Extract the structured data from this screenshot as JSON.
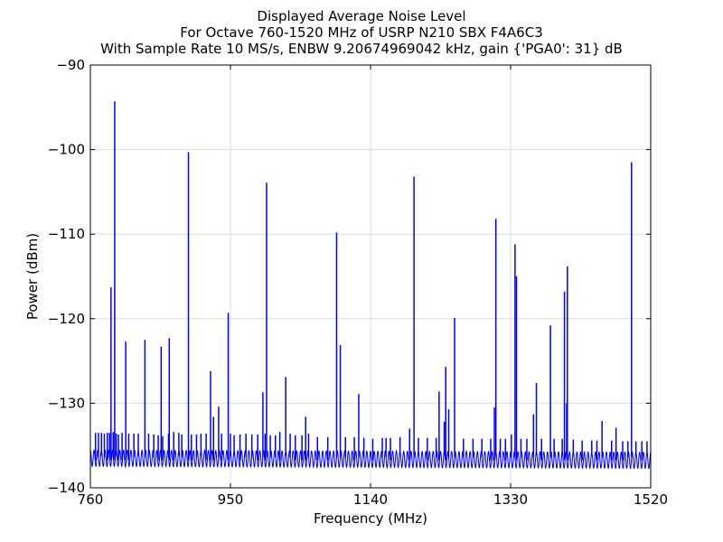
{
  "chart_data": {
    "type": "line",
    "title_lines": [
      "Displayed Average Noise Level",
      "For Octave 760-1520 MHz of USRP N210 SBX F4A6C3",
      "With Sample Rate 10 MS/s, ENBW 9.20674969042 kHz, gain {'PGA0': 31} dB"
    ],
    "xlabel": "Frequency (MHz)",
    "ylabel": "Power (dBm)",
    "xlim": [
      760,
      1520
    ],
    "ylim": [
      -140,
      -90
    ],
    "x_ticks": [
      760,
      950,
      1140,
      1330,
      1520
    ],
    "x_tick_labels": [
      "760",
      "950",
      "1140",
      "1330",
      "1520"
    ],
    "y_ticks": [
      -90,
      -100,
      -110,
      -120,
      -130,
      -140
    ],
    "y_tick_labels": [
      "−90",
      "−100",
      "−110",
      "−120",
      "−130",
      "−140"
    ],
    "grid": true,
    "series": [
      {
        "color": "#0000ff",
        "noise_floor_dbm": -136.5,
        "ripple_period_mhz": 5,
        "peaks": [
          {
            "x": 767,
            "y": -133.5
          },
          {
            "x": 771,
            "y": -133.5
          },
          {
            "x": 775,
            "y": -133.5
          },
          {
            "x": 779,
            "y": -133.6
          },
          {
            "x": 783,
            "y": -133.5
          },
          {
            "x": 786,
            "y": -133.5
          },
          {
            "x": 788,
            "y": -116.3
          },
          {
            "x": 791,
            "y": -133.4
          },
          {
            "x": 793,
            "y": -94.3
          },
          {
            "x": 795,
            "y": -133.6
          },
          {
            "x": 798,
            "y": -133.7
          },
          {
            "x": 803,
            "y": -133.5
          },
          {
            "x": 808,
            "y": -122.7
          },
          {
            "x": 812,
            "y": -133.6
          },
          {
            "x": 819,
            "y": -133.6
          },
          {
            "x": 825,
            "y": -133.6
          },
          {
            "x": 834,
            "y": -122.5
          },
          {
            "x": 839,
            "y": -133.6
          },
          {
            "x": 846,
            "y": -133.7
          },
          {
            "x": 852,
            "y": -133.8
          },
          {
            "x": 856,
            "y": -123.3
          },
          {
            "x": 858,
            "y": -133.9
          },
          {
            "x": 866,
            "y": -133.6
          },
          {
            "x": 867,
            "y": -122.3
          },
          {
            "x": 873,
            "y": -133.4
          },
          {
            "x": 880,
            "y": -133.5
          },
          {
            "x": 884,
            "y": -133.7
          },
          {
            "x": 893,
            "y": -100.3
          },
          {
            "x": 897,
            "y": -133.7
          },
          {
            "x": 904,
            "y": -133.7
          },
          {
            "x": 910,
            "y": -133.6
          },
          {
            "x": 917,
            "y": -133.6
          },
          {
            "x": 923,
            "y": -126.2
          },
          {
            "x": 927,
            "y": -131.6
          },
          {
            "x": 934,
            "y": -130.4
          },
          {
            "x": 938,
            "y": -133.6
          },
          {
            "x": 947,
            "y": -119.3
          },
          {
            "x": 950,
            "y": -133.6
          },
          {
            "x": 955,
            "y": -133.8
          },
          {
            "x": 963,
            "y": -133.7
          },
          {
            "x": 971,
            "y": -133.6
          },
          {
            "x": 979,
            "y": -133.7
          },
          {
            "x": 987,
            "y": -133.7
          },
          {
            "x": 994,
            "y": -128.7
          },
          {
            "x": 997,
            "y": -133.6
          },
          {
            "x": 999,
            "y": -103.9
          },
          {
            "x": 1004,
            "y": -133.8
          },
          {
            "x": 1011,
            "y": -133.8
          },
          {
            "x": 1017,
            "y": -133.4
          },
          {
            "x": 1025,
            "y": -126.9
          },
          {
            "x": 1031,
            "y": -133.6
          },
          {
            "x": 1038,
            "y": -133.8
          },
          {
            "x": 1047,
            "y": -133.8
          },
          {
            "x": 1052,
            "y": -131.6
          },
          {
            "x": 1056,
            "y": -133.6
          },
          {
            "x": 1068,
            "y": -134.0
          },
          {
            "x": 1082,
            "y": -134.0
          },
          {
            "x": 1094,
            "y": -109.8
          },
          {
            "x": 1099,
            "y": -123.1
          },
          {
            "x": 1106,
            "y": -134.0
          },
          {
            "x": 1118,
            "y": -134.0
          },
          {
            "x": 1124,
            "y": -128.9
          },
          {
            "x": 1131,
            "y": -134.1
          },
          {
            "x": 1143,
            "y": -134.2
          },
          {
            "x": 1156,
            "y": -134.1
          },
          {
            "x": 1161,
            "y": -134.1
          },
          {
            "x": 1167,
            "y": -134.1
          },
          {
            "x": 1180,
            "y": -134.0
          },
          {
            "x": 1193,
            "y": -133.0
          },
          {
            "x": 1199,
            "y": -103.2
          },
          {
            "x": 1205,
            "y": -134.1
          },
          {
            "x": 1217,
            "y": -134.1
          },
          {
            "x": 1229,
            "y": -134.1
          },
          {
            "x": 1233,
            "y": -128.6
          },
          {
            "x": 1240,
            "y": -132.2
          },
          {
            "x": 1242,
            "y": -125.7
          },
          {
            "x": 1246,
            "y": -130.7
          },
          {
            "x": 1254,
            "y": -119.9
          },
          {
            "x": 1266,
            "y": -134.2
          },
          {
            "x": 1279,
            "y": -134.2
          },
          {
            "x": 1291,
            "y": -134.2
          },
          {
            "x": 1303,
            "y": -134.2
          },
          {
            "x": 1308,
            "y": -130.5
          },
          {
            "x": 1310,
            "y": -108.2
          },
          {
            "x": 1316,
            "y": -134.2
          },
          {
            "x": 1323,
            "y": -134.2
          },
          {
            "x": 1331,
            "y": -133.7
          },
          {
            "x": 1336,
            "y": -111.2
          },
          {
            "x": 1338,
            "y": -115.0
          },
          {
            "x": 1344,
            "y": -134.2
          },
          {
            "x": 1352,
            "y": -134.2
          },
          {
            "x": 1361,
            "y": -131.3
          },
          {
            "x": 1365,
            "y": -127.6
          },
          {
            "x": 1372,
            "y": -134.2
          },
          {
            "x": 1384,
            "y": -120.8
          },
          {
            "x": 1389,
            "y": -134.2
          },
          {
            "x": 1400,
            "y": -134.2
          },
          {
            "x": 1403,
            "y": -116.8
          },
          {
            "x": 1406,
            "y": -130.0
          },
          {
            "x": 1407,
            "y": -113.8
          },
          {
            "x": 1415,
            "y": -134.3
          },
          {
            "x": 1427,
            "y": -134.4
          },
          {
            "x": 1440,
            "y": -134.4
          },
          {
            "x": 1447,
            "y": -134.4
          },
          {
            "x": 1454,
            "y": -132.1
          },
          {
            "x": 1467,
            "y": -134.4
          },
          {
            "x": 1473,
            "y": -132.9
          },
          {
            "x": 1482,
            "y": -134.5
          },
          {
            "x": 1489,
            "y": -134.5
          },
          {
            "x": 1494,
            "y": -101.5
          },
          {
            "x": 1500,
            "y": -134.5
          },
          {
            "x": 1508,
            "y": -134.5
          },
          {
            "x": 1515,
            "y": -134.5
          }
        ]
      }
    ]
  }
}
